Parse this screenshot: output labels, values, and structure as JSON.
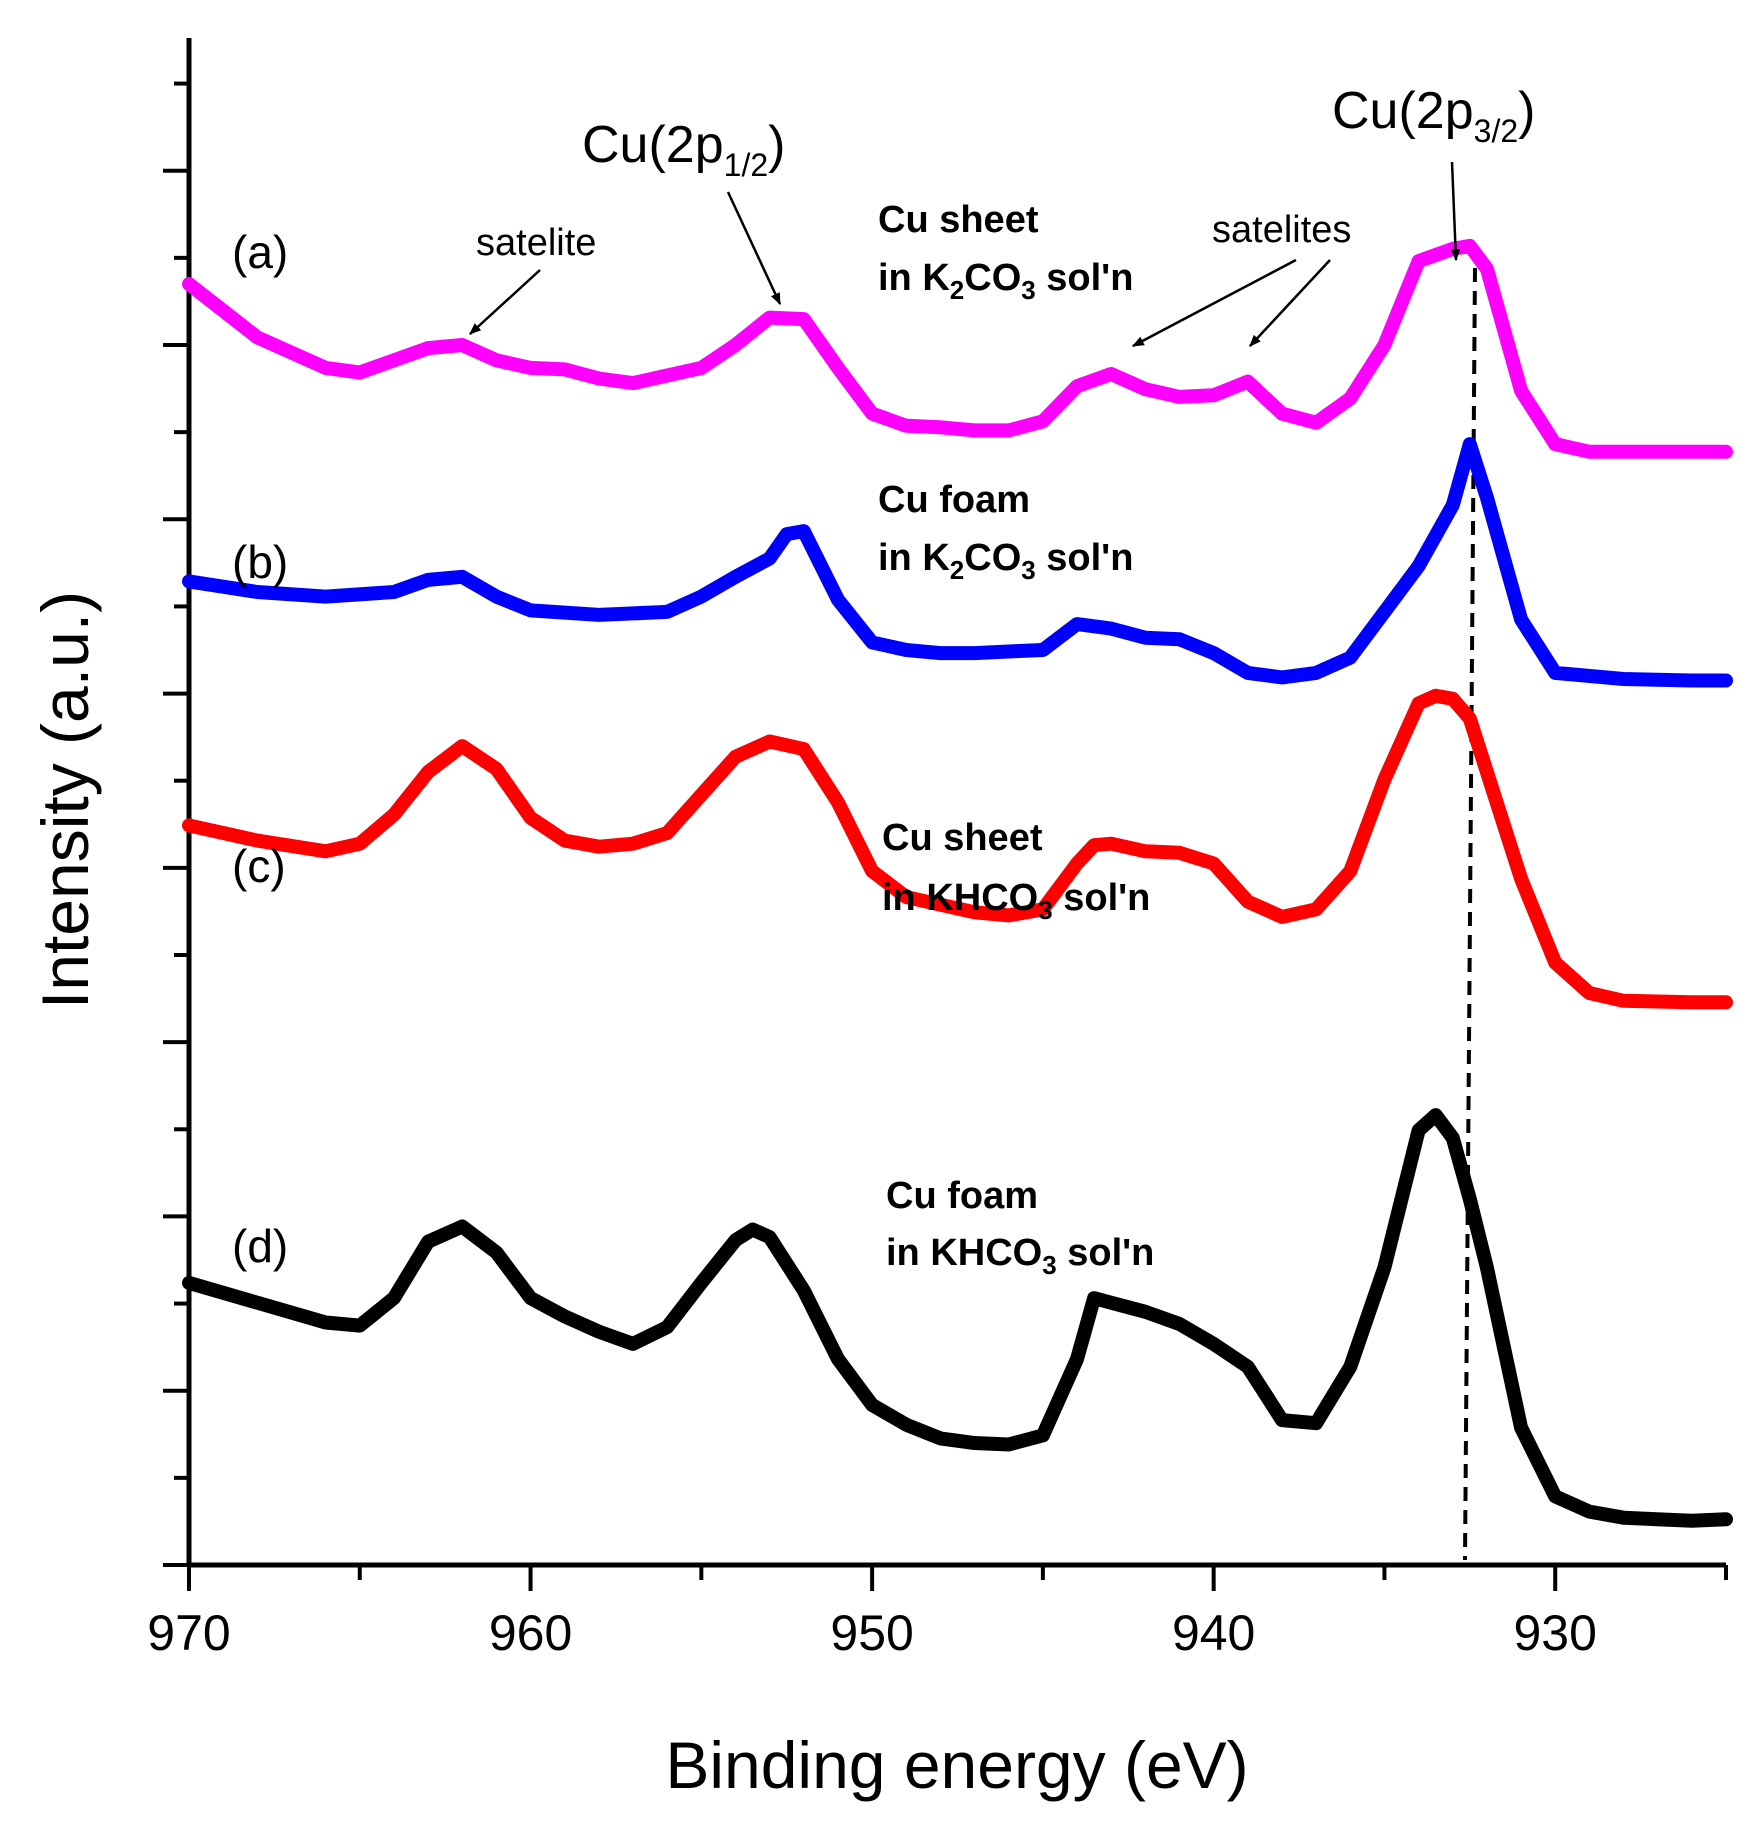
{
  "chart_data": {
    "type": "line",
    "xlabel": "Binding energy (eV)",
    "ylabel": "Intensity (a.u.)",
    "xlim": [
      970,
      925
    ],
    "ylim": [
      0,
      100
    ],
    "x_ticks": [
      "970",
      "960",
      "950",
      "940",
      "930"
    ],
    "x_tick_values": [
      970,
      960,
      950,
      940,
      930
    ],
    "grid": false,
    "series": [
      {
        "name": "(a)",
        "sample": "Cu sheet",
        "solution": "in K2CO3 sol'n",
        "solution_parts": [
          "in K",
          "2",
          "CO",
          "3",
          " sol'n"
        ],
        "color": "#ff00ff",
        "x": [
          970,
          968,
          966,
          965,
          964,
          963,
          962,
          961,
          960,
          959,
          958,
          957,
          956,
          955,
          954,
          953,
          952,
          951,
          950,
          949,
          948,
          947,
          946,
          945,
          944,
          943,
          942,
          941,
          940,
          939,
          938,
          937,
          936,
          935,
          934,
          933,
          932.5,
          932,
          931,
          930,
          929,
          928,
          926,
          925
        ],
        "y": [
          84,
          80.5,
          78.5,
          78.2,
          79,
          79.8,
          80,
          79,
          78.5,
          78.4,
          77.8,
          77.5,
          78,
          78.5,
          80,
          81.8,
          81.7,
          78.5,
          75.5,
          74.7,
          74.6,
          74.4,
          74.4,
          75,
          77.3,
          78.1,
          77.1,
          76.6,
          76.7,
          77.6,
          75.5,
          74.9,
          76.5,
          80,
          85.5,
          86.3,
          86.5,
          85,
          77,
          73.5,
          73,
          73,
          73,
          73
        ]
      },
      {
        "name": "(b)",
        "sample": "Cu foam",
        "solution": "in K2CO3 sol'n",
        "solution_parts": [
          "in K",
          "2",
          "CO",
          "3",
          " sol'n"
        ],
        "color": "#0000ff",
        "x": [
          970,
          968,
          966,
          964,
          963,
          962,
          961,
          960,
          958,
          956,
          955,
          954,
          953,
          952.5,
          952,
          951,
          950,
          949,
          948,
          947,
          946,
          945,
          944,
          943,
          942,
          941,
          940,
          939,
          938,
          937,
          936,
          935,
          934,
          933,
          932.5,
          932,
          931,
          930,
          928,
          926,
          925
        ],
        "y": [
          64.5,
          63.8,
          63.5,
          63.8,
          64.6,
          64.8,
          63.5,
          62.6,
          62.3,
          62.5,
          63.5,
          64.8,
          66,
          67.6,
          67.8,
          63.3,
          60.5,
          60,
          59.8,
          59.8,
          59.9,
          60,
          61.7,
          61.4,
          60.8,
          60.7,
          59.8,
          58.5,
          58.2,
          58.5,
          59.5,
          62.5,
          65.5,
          69.5,
          73.5,
          70,
          62,
          58.5,
          58.1,
          58,
          58
        ]
      },
      {
        "name": "(c)",
        "sample": "Cu sheet",
        "solution": "in KHCO3 sol'n",
        "solution_parts": [
          "in KHCO",
          "3",
          " sol'n"
        ],
        "color": "#ff0000",
        "x": [
          970,
          968,
          966,
          965,
          964,
          963,
          962,
          961,
          960,
          959,
          958,
          957,
          956,
          955,
          954,
          953,
          952,
          951,
          950,
          949,
          948,
          947,
          946,
          945,
          944,
          943.5,
          943,
          942,
          941,
          940,
          939,
          938,
          937,
          936,
          935,
          934,
          933.5,
          933,
          932.5,
          932,
          931,
          930,
          929,
          928,
          926,
          925
        ],
        "y": [
          48.5,
          47.5,
          46.8,
          47.3,
          49.2,
          52,
          53.7,
          52.2,
          49,
          47.5,
          47.1,
          47.3,
          48,
          50.5,
          53,
          54,
          53.5,
          50,
          45.5,
          43.8,
          43.3,
          42.8,
          42.6,
          43,
          46,
          47.2,
          47.3,
          46.8,
          46.7,
          46,
          43.5,
          42.5,
          43,
          45.5,
          51.5,
          56.5,
          57,
          56.8,
          55.5,
          52,
          45,
          39.5,
          37.5,
          37,
          36.9,
          36.9
        ]
      },
      {
        "name": "(d)",
        "sample": "Cu foam",
        "solution": "in KHCO3 sol'n",
        "solution_parts": [
          "in KHCO",
          "3",
          " sol'n"
        ],
        "color": "#000000",
        "x": [
          970,
          968,
          966,
          965,
          964,
          963,
          962,
          961,
          960,
          959,
          958,
          957,
          956,
          955,
          954,
          953.5,
          953,
          952,
          951,
          950,
          949,
          948,
          947,
          946,
          945,
          944,
          943.5,
          943,
          942,
          941,
          940,
          939,
          938,
          937,
          936,
          935,
          934,
          933.5,
          933,
          932.5,
          932,
          931,
          930,
          929,
          928,
          926,
          925
        ],
        "y": [
          18.5,
          17.2,
          15.9,
          15.7,
          17.5,
          21.2,
          22.2,
          20.5,
          17.5,
          16.3,
          15.3,
          14.5,
          15.6,
          18.5,
          21.3,
          22,
          21.5,
          18,
          13.5,
          10.5,
          9.2,
          8.3,
          8.0,
          7.9,
          8.5,
          13.5,
          17.5,
          17.2,
          16.6,
          15.8,
          14.5,
          13,
          9.5,
          9.3,
          13,
          19.5,
          28.5,
          29.5,
          28,
          24,
          19.5,
          9,
          4.5,
          3.5,
          3.1,
          2.9,
          3.0
        ]
      }
    ],
    "annotations": {
      "peak_2p12": {
        "text": "Cu(2p",
        "sub": "1/2",
        "close": ")",
        "at": 952.5
      },
      "peak_2p32": {
        "text": "Cu(2p",
        "sub": "3/2",
        "close": ")",
        "at": 932.3
      },
      "satelite": "satelite",
      "satelites": "satelites"
    }
  }
}
